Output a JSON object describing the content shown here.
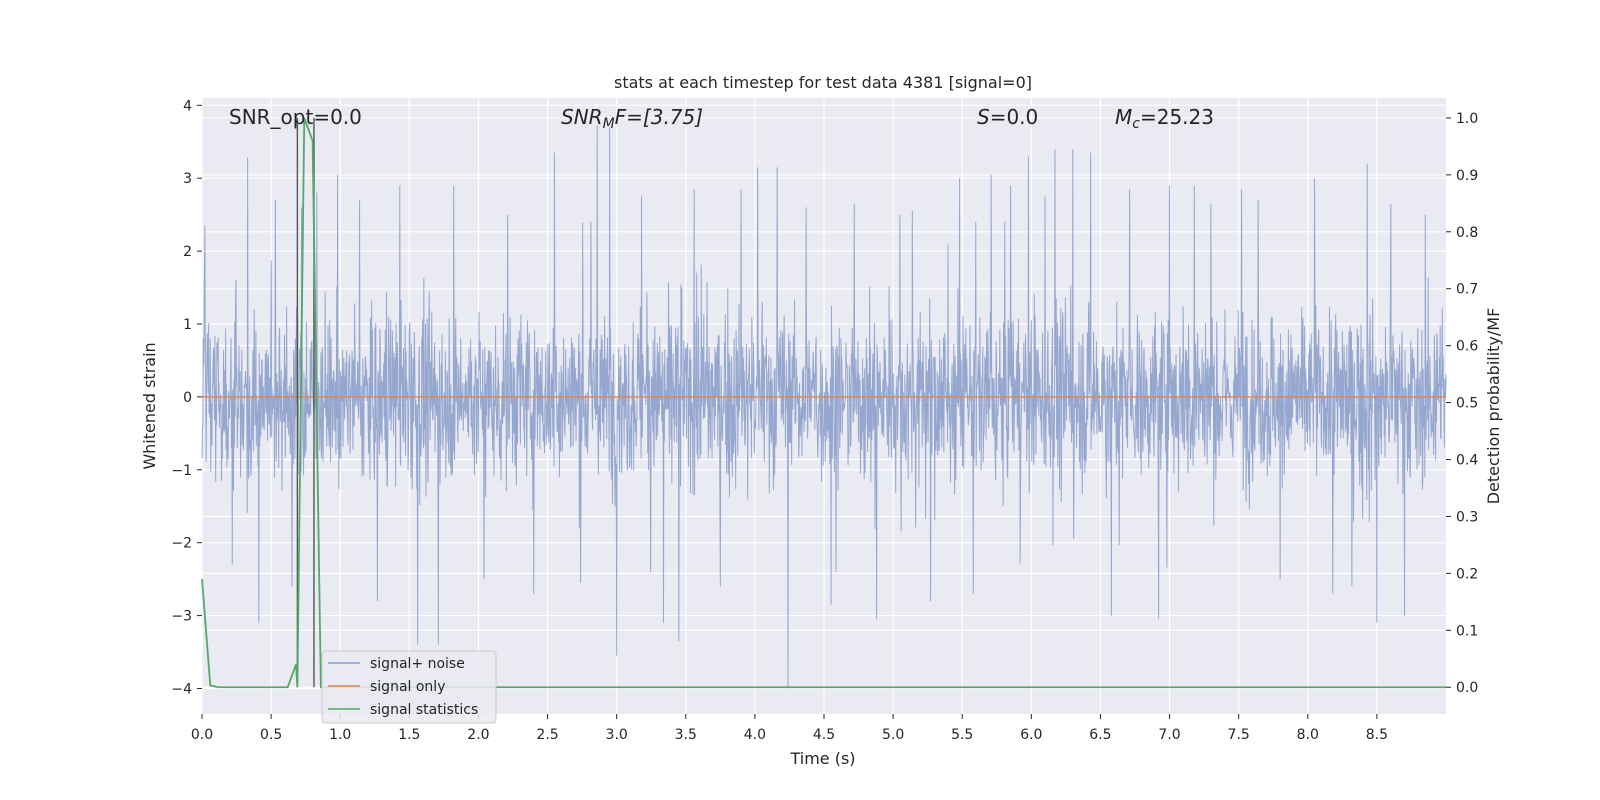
{
  "chart_data": {
    "type": "line",
    "title": "stats at each timestep for test data 4381 [signal=0]",
    "xlabel": "Time (s)",
    "ylabel": "Whitened strain",
    "y2label": "Detection probability/MF",
    "xlim": [
      0,
      9
    ],
    "ylim": [
      -4.35,
      4.1
    ],
    "y2lim": [
      -0.047,
      1.035
    ],
    "xticks": [
      "0.0",
      "0.5",
      "1.0",
      "1.5",
      "2.0",
      "2.5",
      "3.0",
      "3.5",
      "4.0",
      "4.5",
      "5.0",
      "5.5",
      "6.0",
      "6.5",
      "7.0",
      "7.5",
      "8.0",
      "8.5"
    ],
    "yticks": [
      "4",
      "3",
      "2",
      "1",
      "0",
      "−1",
      "−2",
      "−3",
      "−4"
    ],
    "y2ticks": [
      "1.0",
      "0.9",
      "0.8",
      "0.7",
      "0.6",
      "0.5",
      "0.4",
      "0.3",
      "0.2",
      "0.1",
      "0.0"
    ],
    "grid": true,
    "legend_position": "lower-left",
    "annotations": {
      "snr_opt": "SNR_opt=0.0",
      "snr_mf_base": "SNR",
      "snr_mf_sub": "M",
      "snr_mf_rest": "F=[3.75]",
      "s_var": "S",
      "s_rest": "=0.0",
      "mc_base": "M",
      "mc_sub": "c",
      "mc_rest": "=25.23"
    },
    "vlines_x": [
      0.69,
      0.81
    ],
    "series": [
      {
        "name": "signal+ noise",
        "color": "#8da0cb",
        "description_stats": {
          "typical_range": [
            -1.5,
            1.5
          ],
          "max": 3.75,
          "min": -4.0,
          "x_range": [
            0,
            9
          ]
        },
        "spikes": [
          [
            0.02,
            2.35
          ],
          [
            0.22,
            -2.3
          ],
          [
            0.33,
            3.28
          ],
          [
            0.41,
            -3.1
          ],
          [
            0.53,
            2.7
          ],
          [
            0.65,
            -2.6
          ],
          [
            0.72,
            2.6
          ],
          [
            0.83,
            2.8
          ],
          [
            0.98,
            3.05
          ],
          [
            1.14,
            2.7
          ],
          [
            1.27,
            -2.8
          ],
          [
            1.43,
            2.9
          ],
          [
            1.56,
            -3.4
          ],
          [
            1.71,
            -3.4
          ],
          [
            1.82,
            2.9
          ],
          [
            2.04,
            -2.5
          ],
          [
            2.21,
            2.5
          ],
          [
            2.4,
            -2.7
          ],
          [
            2.55,
            3.35
          ],
          [
            2.74,
            -2.55
          ],
          [
            2.86,
            3.72
          ],
          [
            2.95,
            3.7
          ],
          [
            3.0,
            -3.55
          ],
          [
            3.18,
            2.75
          ],
          [
            3.34,
            -3.1
          ],
          [
            3.45,
            -3.35
          ],
          [
            3.56,
            2.85
          ],
          [
            3.75,
            -2.6
          ],
          [
            3.9,
            2.85
          ],
          [
            4.02,
            3.15
          ],
          [
            4.16,
            3.15
          ],
          [
            4.24,
            -4.0
          ],
          [
            4.37,
            2.6
          ],
          [
            4.55,
            -2.85
          ],
          [
            4.72,
            2.65
          ],
          [
            4.88,
            -3.05
          ],
          [
            5.05,
            2.5
          ],
          [
            5.14,
            2.55
          ],
          [
            5.27,
            -2.8
          ],
          [
            5.48,
            3.0
          ],
          [
            5.58,
            -2.7
          ],
          [
            5.71,
            3.05
          ],
          [
            5.85,
            2.9
          ],
          [
            5.98,
            3.3
          ],
          [
            6.1,
            2.75
          ],
          [
            6.17,
            3.4
          ],
          [
            6.3,
            3.4
          ],
          [
            6.43,
            3.35
          ],
          [
            6.58,
            -3.0
          ],
          [
            6.71,
            2.85
          ],
          [
            6.92,
            -3.05
          ],
          [
            7.0,
            2.9
          ],
          [
            7.18,
            2.9
          ],
          [
            7.3,
            2.65
          ],
          [
            7.52,
            2.85
          ],
          [
            7.64,
            2.7
          ],
          [
            7.8,
            -2.5
          ],
          [
            8.05,
            3.0
          ],
          [
            8.18,
            -2.7
          ],
          [
            8.32,
            -2.6
          ],
          [
            8.43,
            3.2
          ],
          [
            8.5,
            -3.1
          ],
          [
            8.6,
            2.65
          ],
          [
            8.7,
            -3.0
          ],
          [
            8.85,
            2.5
          ]
        ]
      },
      {
        "name": "signal only",
        "color": "#dd8452",
        "values_y": 0
      },
      {
        "name": "signal statistics",
        "color": "#55a868",
        "axis": "right",
        "points": [
          [
            0.0,
            0.19
          ],
          [
            0.06,
            0.003
          ],
          [
            0.12,
            0.0
          ],
          [
            0.62,
            0.0
          ],
          [
            0.68,
            0.04
          ],
          [
            0.69,
            0.0
          ],
          [
            0.74,
            1.0
          ],
          [
            0.8,
            0.96
          ],
          [
            0.86,
            0.0
          ],
          [
            9.0,
            0.0
          ]
        ]
      }
    ]
  }
}
